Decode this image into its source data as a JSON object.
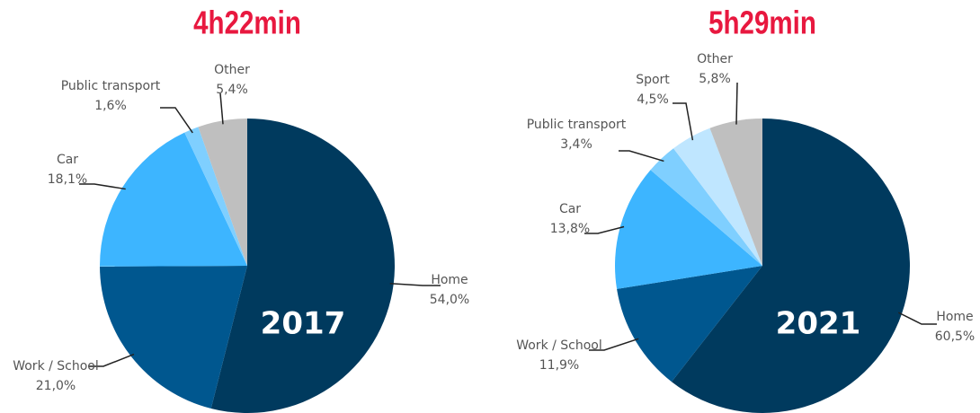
{
  "chart_data": [
    {
      "type": "pie",
      "title": "4h22min",
      "center_label": "2017",
      "categories": [
        "Home",
        "Work / School",
        "Car",
        "Public transport",
        "Other"
      ],
      "values": [
        54.0,
        21.0,
        18.1,
        1.6,
        5.4
      ],
      "value_labels": [
        "54,0%",
        "21,0%",
        "18,1%",
        "1,6%",
        "5,4%"
      ],
      "colors": [
        "#003a5e",
        "#00578f",
        "#3db5ff",
        "#7fcfff",
        "#bfbfbf"
      ]
    },
    {
      "type": "pie",
      "title": "5h29min",
      "center_label": "2021",
      "categories": [
        "Home",
        "Work / School",
        "Car",
        "Public transport",
        "Sport",
        "Other"
      ],
      "values": [
        60.5,
        11.9,
        13.8,
        3.4,
        4.5,
        5.8
      ],
      "value_labels": [
        "60,5%",
        "11,9%",
        "13,8%",
        "3,4%",
        "4,5%",
        "5,8%"
      ],
      "colors": [
        "#003a5e",
        "#00578f",
        "#3db5ff",
        "#7fcfff",
        "#bfe6ff",
        "#bfbfbf"
      ]
    }
  ]
}
